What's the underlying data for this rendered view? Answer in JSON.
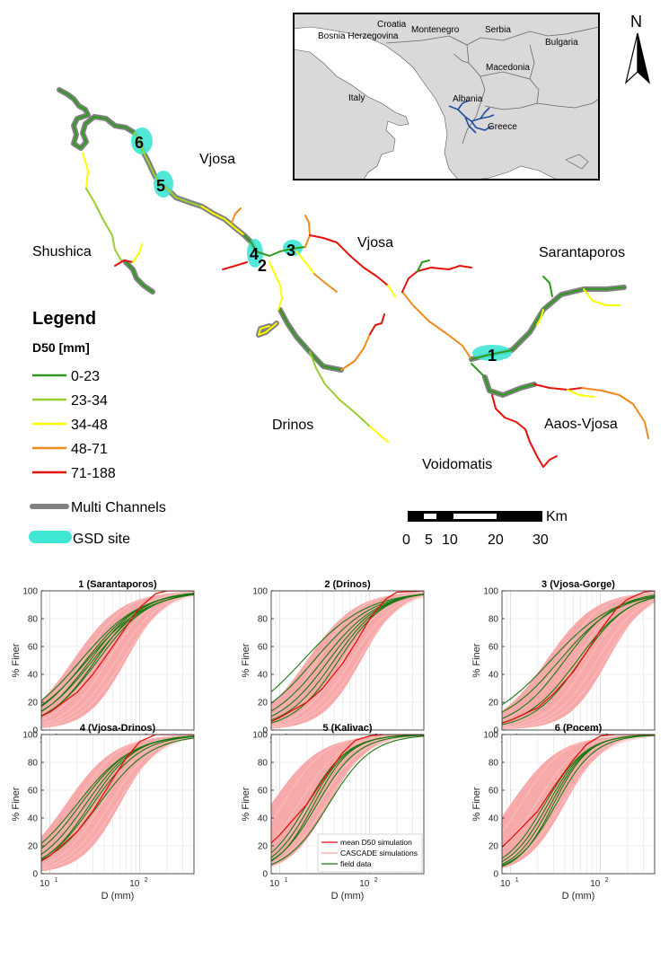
{
  "map": {
    "north_label": "N",
    "rivers": [
      {
        "id": "vjosa-upper",
        "label": "Vjosa"
      },
      {
        "id": "vjosa-lower",
        "label": "Vjosa"
      },
      {
        "id": "shushica",
        "label": "Shushica"
      },
      {
        "id": "sarantaporos",
        "label": "Sarantaporos"
      },
      {
        "id": "drinos",
        "label": "Drinos"
      },
      {
        "id": "aaos",
        "label": "Aaos-Vjosa"
      },
      {
        "id": "voidomatis",
        "label": "Voidomatis"
      }
    ],
    "sites": [
      "1",
      "2",
      "3",
      "4",
      "5",
      "6"
    ],
    "inset_countries": [
      "Croatia",
      "Montenegro",
      "Bosnia Herzegovina",
      "Serbia",
      "Bulgaria",
      "Macedonia",
      "Italy",
      "Albania",
      "Greece"
    ],
    "legend": {
      "title": "Legend",
      "subtitle": "D50 [mm]",
      "classes": [
        {
          "label": "0-23",
          "color": "#2e9b1f"
        },
        {
          "label": "23-34",
          "color": "#9acd32"
        },
        {
          "label": "34-48",
          "color": "#ffff00"
        },
        {
          "label": "48-71",
          "color": "#f08a1e"
        },
        {
          "label": "71-188",
          "color": "#e3120b"
        }
      ],
      "multi_label": "Multi Channels",
      "multi_color": "#808080",
      "gsd_label": "GSD site",
      "gsd_color": "#40e6d4"
    },
    "scalebar": {
      "unit": "Km",
      "ticks": [
        "0",
        "5",
        "10",
        "20",
        "30"
      ]
    }
  },
  "plots": {
    "ylabel": "% Finer",
    "xlabel": "D (mm)",
    "xticks": [
      "10",
      "10",
      "2"
    ],
    "yticks": [
      "0",
      "20",
      "40",
      "60",
      "80",
      "100"
    ],
    "legend": [
      "mean D50 simulation",
      "CASCADE simulations",
      "field data"
    ],
    "colors": {
      "mean": "#e3120b",
      "cascade": "#f7a0a0",
      "field": "#1a7a12"
    },
    "panels": [
      {
        "title": "1     (Sarantaporos)"
      },
      {
        "title": "2     (Drinos)"
      },
      {
        "title": "3     (Vjosa-Gorge)"
      },
      {
        "title": "4     (Vjosa-Drinos)"
      },
      {
        "title": "5     (Kalivac)"
      },
      {
        "title": "6     (Pocem)"
      }
    ]
  },
  "chart_data": [
    {
      "type": "line",
      "title": "1     (Sarantaporos)",
      "xlabel": "D (mm)",
      "ylabel": "% Finer",
      "x_scale": "log",
      "xlim": [
        8,
        400
      ],
      "ylim": [
        0,
        100
      ],
      "grid": true,
      "series": [
        {
          "name": "mean D50 simulation",
          "x": [
            8,
            10,
            20,
            30,
            50,
            70,
            100,
            150,
            200
          ],
          "y": [
            10,
            13,
            27,
            40,
            60,
            74,
            88,
            98,
            100
          ]
        }
      ]
    },
    {
      "type": "line",
      "title": "2     (Drinos)",
      "xlabel": "D (mm)",
      "ylabel": "% Finer",
      "x_scale": "log",
      "xlim": [
        8,
        400
      ],
      "ylim": [
        0,
        100
      ],
      "grid": true,
      "series": [
        {
          "name": "mean D50 simulation",
          "x": [
            8,
            10,
            20,
            30,
            50,
            70,
            100,
            150,
            200
          ],
          "y": [
            6,
            9,
            20,
            30,
            48,
            63,
            80,
            94,
            99
          ]
        }
      ]
    },
    {
      "type": "line",
      "title": "3     (Vjosa-Gorge)",
      "xlabel": "D (mm)",
      "ylabel": "% Finer",
      "x_scale": "log",
      "xlim": [
        8,
        400
      ],
      "ylim": [
        0,
        100
      ],
      "grid": true,
      "series": [
        {
          "name": "mean D50 simulation",
          "x": [
            8,
            10,
            20,
            30,
            50,
            70,
            100,
            150,
            200,
            300
          ],
          "y": [
            5,
            7,
            16,
            26,
            42,
            56,
            72,
            87,
            94,
            99
          ]
        }
      ]
    },
    {
      "type": "line",
      "title": "4     (Vjosa-Drinos)",
      "xlabel": "D (mm)",
      "ylabel": "% Finer",
      "x_scale": "log",
      "xlim": [
        8,
        400
      ],
      "ylim": [
        0,
        100
      ],
      "grid": true,
      "series": [
        {
          "name": "mean D50 simulation",
          "x": [
            8,
            10,
            20,
            30,
            50,
            70,
            100,
            150
          ],
          "y": [
            9,
            13,
            30,
            45,
            68,
            83,
            95,
            100
          ]
        }
      ]
    },
    {
      "type": "line",
      "title": "5     (Kalivac)",
      "xlabel": "D (mm)",
      "ylabel": "% Finer",
      "x_scale": "log",
      "xlim": [
        8,
        400
      ],
      "ylim": [
        0,
        100
      ],
      "grid": true,
      "series": [
        {
          "name": "mean D50 simulation",
          "x": [
            8,
            10,
            20,
            30,
            50,
            70,
            100,
            150
          ],
          "y": [
            22,
            28,
            50,
            67,
            87,
            96,
            99,
            100
          ]
        }
      ]
    },
    {
      "type": "line",
      "title": "6     (Pocem)",
      "xlabel": "D (mm)",
      "ylabel": "% Finer",
      "x_scale": "log",
      "xlim": [
        8,
        400
      ],
      "ylim": [
        0,
        100
      ],
      "grid": true,
      "series": [
        {
          "name": "mean D50 simulation",
          "x": [
            8,
            10,
            20,
            30,
            50,
            70,
            100,
            150
          ],
          "y": [
            19,
            25,
            45,
            62,
            82,
            93,
            99,
            100
          ]
        }
      ]
    }
  ]
}
